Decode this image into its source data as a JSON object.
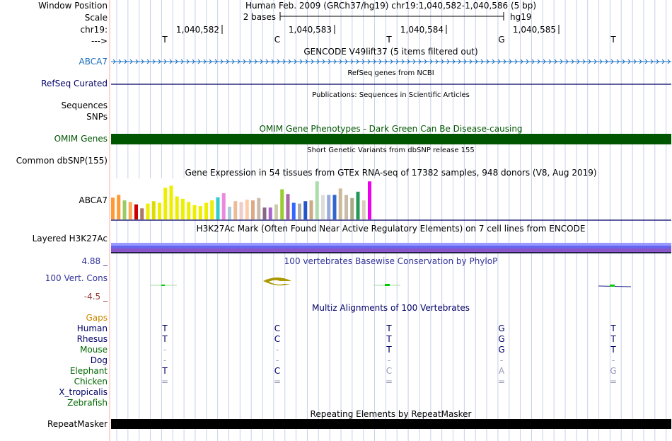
{
  "labels": {
    "window_position": "Window Position",
    "scale": "Scale",
    "chrom": "chr19:",
    "strand": "--->",
    "abca7": "ABCA7",
    "refseq": "RefSeq Curated",
    "sequences": "Sequences",
    "snps": "SNPs",
    "omim": "OMIM Genes",
    "dbsnp": "Common dbSNP(155)",
    "gtex_gene": "ABCA7",
    "h3k27ac": "Layered H3K27Ac",
    "phylop_max": "4.88 _",
    "cons": "100 Vert. Cons",
    "phylop_min": "-4.5 _",
    "gaps": "Gaps",
    "species": [
      "Human",
      "Rhesus",
      "Mouse",
      "Dog",
      "Elephant",
      "Chicken",
      "X_tropicalis",
      "Zebrafish"
    ],
    "repeatmasker": "RepeatMasker"
  },
  "header": {
    "position": "Human Feb. 2009 (GRCh37/hg19)   chr19:1,040,582-1,040,586 (5 bp)",
    "scale": "2 bases",
    "assembly": "hg19",
    "ticks": [
      "1,040,582",
      "1,040,583",
      "1,040,584",
      "1,040,585"
    ]
  },
  "bases": [
    "T",
    "C",
    "T",
    "G",
    "T"
  ],
  "titles": {
    "gencode": "GENCODE V49lift37 (5 items filtered out)",
    "refseq": "RefSeq genes from NCBI",
    "publications": "Publications: Sequences in Scientific Articles",
    "omim": "OMIM Gene Phenotypes - Dark Green Can Be Disease-causing",
    "dbsnp": "Short Genetic Variants from dbSNP release 155",
    "gtex": "Gene Expression in 54 tissues from GTEx RNA-seq of 17382 samples, 948 donors (V8, Aug 2019)",
    "h3k27ac": "H3K27Ac Mark (Often Found Near Active Regulatory Elements) on 7 cell lines from ENCODE",
    "phylop": "100 vertebrates Basewise Conservation by PhyloP",
    "multiz": "Multiz Alignments of 100 Vertebrates",
    "repeatmasker": "Repeating Elements by RepeatMasker"
  },
  "alignment": {
    "Human": [
      "T",
      "C",
      "T",
      "G",
      "T"
    ],
    "Rhesus": [
      "T",
      "C",
      "T",
      "G",
      "T"
    ],
    "Mouse": [
      "-",
      "-",
      "T",
      "G",
      "T"
    ],
    "Dog": [
      "-",
      "-",
      "-",
      "-",
      "-"
    ],
    "Elephant": [
      "T",
      "C",
      "C",
      "A",
      "G"
    ],
    "Chicken": [
      "=",
      "=",
      "=",
      "=",
      "="
    ]
  },
  "gtex_bars": [
    {
      "color": "#ff9933",
      "level": 0.55
    },
    {
      "color": "#ff9933",
      "level": 0.62
    },
    {
      "color": "#99cc66",
      "level": 0.48
    },
    {
      "color": "#ffaa55",
      "level": 0.44
    },
    {
      "color": "#cc0000",
      "level": 0.38
    },
    {
      "color": "#aa7766",
      "level": 0.28
    },
    {
      "color": "#eeee00",
      "level": 0.4
    },
    {
      "color": "#dddd00",
      "level": 0.46
    },
    {
      "color": "#eeee00",
      "level": 0.42
    },
    {
      "color": "#eeee00",
      "level": 0.8
    },
    {
      "color": "#eeee00",
      "level": 0.85
    },
    {
      "color": "#eeee00",
      "level": 0.58
    },
    {
      "color": "#eeee00",
      "level": 0.52
    },
    {
      "color": "#eeee00",
      "level": 0.44
    },
    {
      "color": "#eeee00",
      "level": 0.36
    },
    {
      "color": "#eeee00",
      "level": 0.34
    },
    {
      "color": "#eeee00",
      "level": 0.42
    },
    {
      "color": "#eeee00",
      "level": 0.48
    },
    {
      "color": "#33cccc",
      "level": 0.56
    },
    {
      "color": "#ee88dd",
      "level": 0.66
    },
    {
      "color": "#aaccdd",
      "level": 0.32
    },
    {
      "color": "#eebb99",
      "level": 0.46
    },
    {
      "color": "#eecccc",
      "level": 0.44
    },
    {
      "color": "#ffccaa",
      "level": 0.5
    },
    {
      "color": "#ddaa88",
      "level": 0.48
    },
    {
      "color": "#ccbbaa",
      "level": 0.54
    },
    {
      "color": "#886688",
      "level": 0.3
    },
    {
      "color": "#aa66cc",
      "level": 0.3
    },
    {
      "color": "#ccccaa",
      "level": 0.38
    },
    {
      "color": "#99cc33",
      "level": 0.76
    },
    {
      "color": "#aa66aa",
      "level": 0.64
    },
    {
      "color": "#3366ff",
      "level": 0.42
    },
    {
      "color": "#aaaaaa",
      "level": 0.4
    },
    {
      "color": "#2255cc",
      "level": 0.46
    },
    {
      "color": "#ccaa88",
      "level": 0.48
    },
    {
      "color": "#aaddaa",
      "level": 0.96
    },
    {
      "color": "#dddddd",
      "level": 0.62
    },
    {
      "color": "#99aadd",
      "level": 0.62
    },
    {
      "color": "#3366cc",
      "level": 0.62
    },
    {
      "color": "#ccbb99",
      "level": 0.78
    },
    {
      "color": "#ccbbaa",
      "level": 0.62
    },
    {
      "color": "#aaaa88",
      "level": 0.54
    },
    {
      "color": "#229955",
      "level": 0.7
    },
    {
      "color": "#ddccbb",
      "level": 0.48
    },
    {
      "color": "#ee00ee",
      "level": 0.96
    }
  ]
}
